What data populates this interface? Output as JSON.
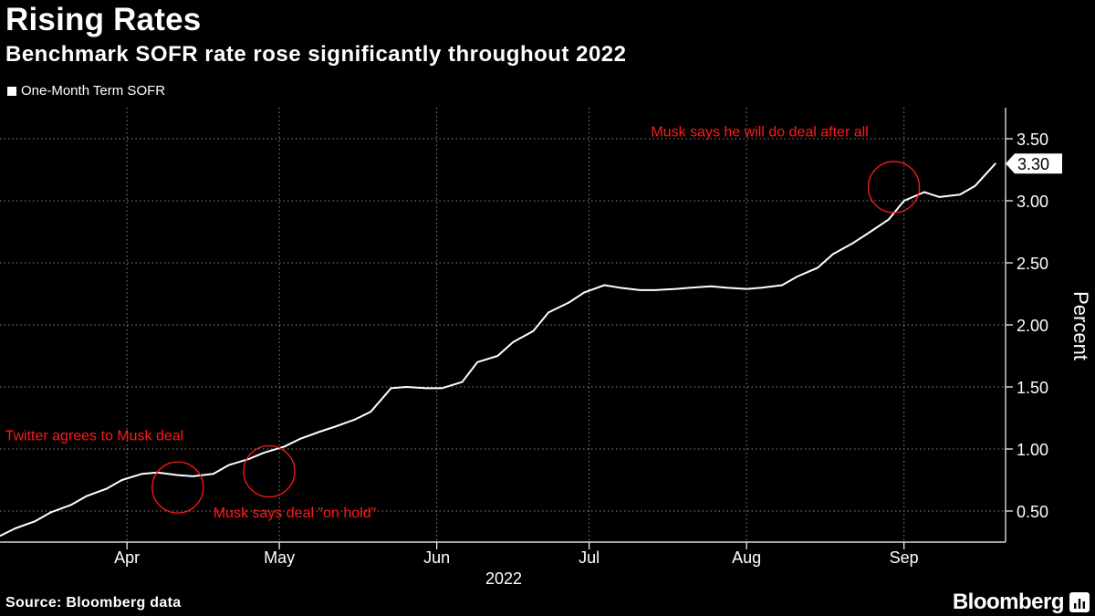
{
  "header": {
    "title": "Rising Rates",
    "subtitle": "Benchmark SOFR rate rose significantly throughout 2022"
  },
  "footer": {
    "source": "Source: Bloomberg data",
    "brand": "Bloomberg"
  },
  "colors": {
    "background": "#000000",
    "line": "#ffffff",
    "annotation": "#ff1a1a",
    "grid": "#8a8a8a"
  },
  "chart_data": {
    "type": "line",
    "title": "Rising Rates",
    "subtitle": "Benchmark SOFR rate rose significantly throughout 2022",
    "legend": [
      {
        "label": "One-Month Term SOFR",
        "placement": "top-left"
      }
    ],
    "xlabel": "2022",
    "ylabel": "Percent",
    "ylim": [
      0.25,
      3.75
    ],
    "yticks": [
      0.5,
      1.0,
      1.5,
      2.0,
      2.5,
      3.0,
      3.5
    ],
    "ytick_labels": [
      "0.50",
      "1.00",
      "1.50",
      "2.00",
      "2.50",
      "3.00",
      "3.50"
    ],
    "x_domain": [
      "2022-03-21",
      "2022-10-05"
    ],
    "xticks": [
      {
        "date": "2022-04-01",
        "label": "Apr"
      },
      {
        "date": "2022-05-01",
        "label": "May"
      },
      {
        "date": "2022-06-01",
        "label": "Jun"
      },
      {
        "date": "2022-07-01",
        "label": "Jul"
      },
      {
        "date": "2022-08-01",
        "label": "Aug"
      },
      {
        "date": "2022-09-01",
        "label": "Sep"
      }
    ],
    "grid_dates": [
      "2022-04-15",
      "2022-05-15",
      "2022-06-15",
      "2022-07-15",
      "2022-08-15",
      "2022-09-15"
    ],
    "grid": true,
    "last_value": {
      "value": 3.3,
      "label": "3.30"
    },
    "series": [
      {
        "name": "One-Month Term SOFR",
        "x": [
          "2022-03-21",
          "2022-03-24",
          "2022-03-28",
          "2022-03-31",
          "2022-04-04",
          "2022-04-07",
          "2022-04-11",
          "2022-04-14",
          "2022-04-18",
          "2022-04-21",
          "2022-04-25",
          "2022-04-28",
          "2022-05-02",
          "2022-05-05",
          "2022-05-09",
          "2022-05-12",
          "2022-05-16",
          "2022-05-19",
          "2022-05-23",
          "2022-05-26",
          "2022-05-30",
          "2022-06-02",
          "2022-06-06",
          "2022-06-09",
          "2022-06-13",
          "2022-06-16",
          "2022-06-20",
          "2022-06-23",
          "2022-06-27",
          "2022-06-30",
          "2022-07-04",
          "2022-07-07",
          "2022-07-11",
          "2022-07-14",
          "2022-07-18",
          "2022-07-21",
          "2022-07-25",
          "2022-07-28",
          "2022-08-01",
          "2022-08-04",
          "2022-08-08",
          "2022-08-11",
          "2022-08-15",
          "2022-08-18",
          "2022-08-22",
          "2022-08-25",
          "2022-08-29",
          "2022-09-01",
          "2022-09-05",
          "2022-09-08",
          "2022-09-12",
          "2022-09-15",
          "2022-09-19",
          "2022-09-22",
          "2022-09-26",
          "2022-09-29",
          "2022-10-03"
        ],
        "values": [
          0.3,
          0.36,
          0.42,
          0.49,
          0.55,
          0.62,
          0.68,
          0.75,
          0.8,
          0.81,
          0.79,
          0.78,
          0.8,
          0.87,
          0.92,
          0.97,
          1.02,
          1.08,
          1.14,
          1.18,
          1.24,
          1.3,
          1.49,
          1.5,
          1.49,
          1.49,
          1.54,
          1.7,
          1.75,
          1.86,
          1.95,
          2.1,
          2.18,
          2.26,
          2.32,
          2.3,
          2.28,
          2.28,
          2.29,
          2.3,
          2.31,
          2.3,
          2.29,
          2.3,
          2.32,
          2.39,
          2.46,
          2.57,
          2.66,
          2.74,
          2.85,
          3.0,
          3.07,
          3.03,
          3.05,
          3.12,
          3.3
        ]
      }
    ],
    "annotations": [
      {
        "text": "Twitter agrees to Musk deal",
        "date": "2022-04-25",
        "value": 0.69,
        "text_date": "2022-03-22",
        "text_value": 1.07,
        "anchor": "start"
      },
      {
        "text": "Musk says deal \"on hold\"",
        "date": "2022-05-13",
        "value": 0.82,
        "text_date": "2022-05-02",
        "text_value": 0.45,
        "anchor": "start"
      },
      {
        "text": "Musk says he will do deal after all",
        "date": "2022-09-13",
        "value": 3.11,
        "text_date": "2022-09-08",
        "text_value": 3.52,
        "anchor": "end"
      }
    ]
  }
}
